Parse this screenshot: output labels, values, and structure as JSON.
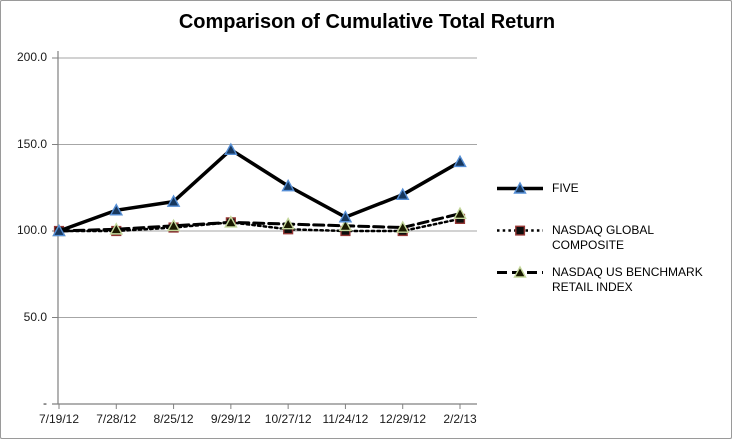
{
  "figure": {
    "background": "#FFFFFF",
    "border_color": "#9A9A9A"
  },
  "chart_data": {
    "type": "line",
    "title": "Comparison of Cumulative Total Return",
    "xlabel": "",
    "ylabel": "",
    "ylim": [
      0,
      200
    ],
    "ytick_values": [
      200,
      150,
      100,
      50,
      0
    ],
    "ytick_labels": [
      "200.0",
      "150.0",
      "100.0",
      "50.0",
      "-"
    ],
    "grid": true,
    "gridline_color": "#A6A6A6",
    "axis_color": "#808080",
    "legend_position": "right",
    "categories": [
      "7/19/12",
      "7/28/12",
      "8/25/12",
      "9/29/12",
      "10/27/12",
      "11/24/12",
      "12/29/12",
      "2/2/13"
    ],
    "series": [
      {
        "name": "FIVE",
        "values": [
          100,
          112,
          117,
          147,
          126,
          108,
          121,
          140
        ],
        "line_style": "solid",
        "line_color": "#000000",
        "line_width": 3.5,
        "marker": "triangle",
        "marker_fill": "#17375D",
        "marker_border": "#558ED5"
      },
      {
        "name": "NASDAQ GLOBAL COMPOSITE",
        "values": [
          100,
          100,
          102,
          105,
          101,
          100,
          100,
          107
        ],
        "line_style": "dotted",
        "line_color": "#000000",
        "line_width": 2.5,
        "marker": "square",
        "marker_fill": "#0D0D0D",
        "marker_border": "#943634"
      },
      {
        "name": "NASDAQ US BENCHMARK  RETAIL INDEX",
        "values": [
          100,
          101,
          103,
          105,
          104,
          103,
          102,
          110
        ],
        "line_style": "dashed",
        "line_color": "#000000",
        "line_width": 3,
        "marker": "triangle",
        "marker_fill": "#1A1A00",
        "marker_border": "#C4D79B"
      }
    ]
  }
}
